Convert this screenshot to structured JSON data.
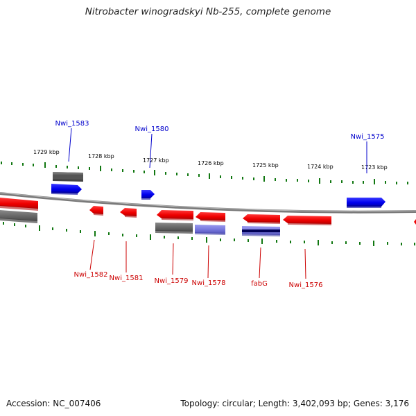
{
  "title": "Nitrobacter winogradskyi Nb-255, complete genome",
  "footer": {
    "accession": "Accession: NC_007406",
    "summary": "Topology: circular; Length: 3,402,093 bp; Genes: 3,176"
  },
  "colors": {
    "forward_gene": "#0000ee",
    "reverse_gene": "#ee0000",
    "other_feature": "#666666",
    "highlight_feature": "#7777dd",
    "ticks": "#117711",
    "backbone": "#888888"
  },
  "kbp_labels": [
    "1729 kbp",
    "1728 kbp",
    "1727 kbp",
    "1726 kbp",
    "1725 kbp",
    "1724 kbp",
    "1723 kbp"
  ],
  "gene_labels_top": [
    "Nwi_1583",
    "Nwi_1580",
    "Nwi_1575"
  ],
  "gene_labels_bottom": [
    "Nwi_1582",
    "Nwi_1581",
    "Nwi_1579",
    "Nwi_1578",
    "fabG",
    "Nwi_1576"
  ]
}
